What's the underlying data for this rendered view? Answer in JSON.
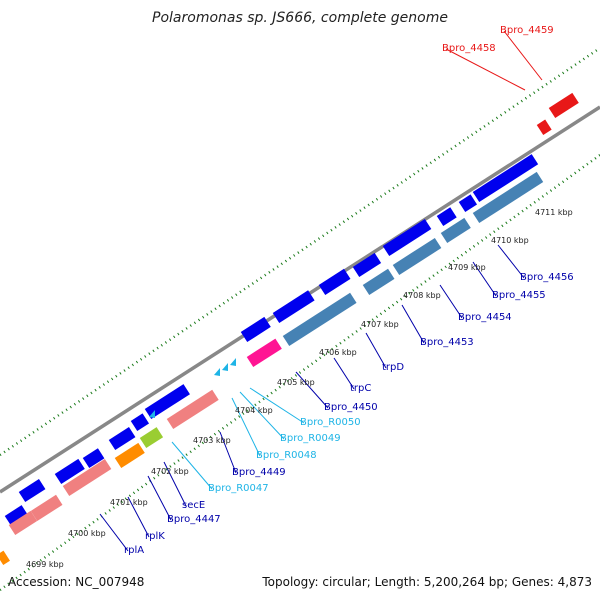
{
  "title": "Polaromonas sp. JS666, complete genome",
  "footer": {
    "accession": "Accession: NC_007948",
    "summary": "Topology: circular; Length: 5,200,264 bp; Genes: 4,873"
  },
  "colors": {
    "protein_coding": "#0000ee",
    "operon": "#4682b4",
    "rrna": "#f08080",
    "trna": "#1eb4e6",
    "highlight": "#e81818",
    "misc": "#ff1493",
    "orange": "#ff8c00",
    "lime": "#9acd32",
    "backbone": "#888888",
    "ticks": "#1a7a1a"
  },
  "kbp_ticks": [
    {
      "text": "4699 kbp"
    },
    {
      "text": "4700 kbp"
    },
    {
      "text": "4701 kbp"
    },
    {
      "text": "4702 kbp"
    },
    {
      "text": "4703 kbp"
    },
    {
      "text": "4704 kbp"
    },
    {
      "text": "4705 kbp"
    },
    {
      "text": "4706 kbp"
    },
    {
      "text": "4707 kbp"
    },
    {
      "text": "4708 kbp"
    },
    {
      "text": "4709 kbp"
    },
    {
      "text": "4710 kbp"
    },
    {
      "text": "4711 kbp"
    }
  ],
  "gene_labels": [
    {
      "text": "Bpro_4459",
      "kind": "highlight"
    },
    {
      "text": "Bpro_4458",
      "kind": "highlight"
    },
    {
      "text": "Bpro_4456",
      "kind": "gene"
    },
    {
      "text": "Bpro_4455",
      "kind": "gene"
    },
    {
      "text": "Bpro_4454",
      "kind": "gene"
    },
    {
      "text": "Bpro_4453",
      "kind": "gene"
    },
    {
      "text": "trpD",
      "kind": "gene"
    },
    {
      "text": "trpC",
      "kind": "gene"
    },
    {
      "text": "Bpro_4450",
      "kind": "gene"
    },
    {
      "text": "Bpro_R0050",
      "kind": "trna"
    },
    {
      "text": "Bpro_R0049",
      "kind": "trna"
    },
    {
      "text": "Bpro_R0048",
      "kind": "trna"
    },
    {
      "text": "Bpro_4449",
      "kind": "gene"
    },
    {
      "text": "Bpro_R0047",
      "kind": "trna"
    },
    {
      "text": "secE",
      "kind": "gene"
    },
    {
      "text": "Bpro_4447",
      "kind": "gene"
    },
    {
      "text": "rplK",
      "kind": "gene"
    },
    {
      "text": "rplA",
      "kind": "gene"
    }
  ]
}
